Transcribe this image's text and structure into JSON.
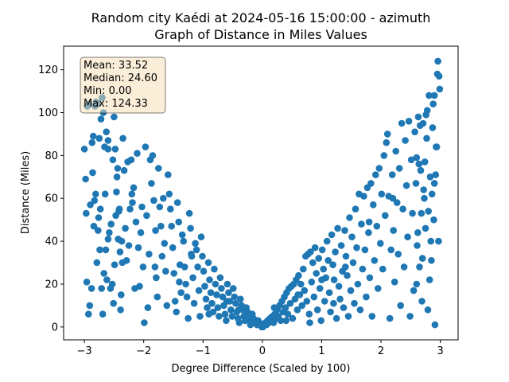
{
  "chart_data": {
    "type": "scatter",
    "title_line1": "Random city Kaédi at 2024-05-16 15:00:00  - azimuth",
    "title_line2": "Graph of Distance in Miles Values",
    "xlabel": "Degree Difference (Scaled by 100)",
    "ylabel": "Distance (Miles)",
    "xlim": [
      -3.35,
      3.3
    ],
    "ylim": [
      -6,
      131
    ],
    "xticks": [
      -3,
      -2,
      -1,
      0,
      1,
      2,
      3
    ],
    "xtick_labels": [
      "−3",
      "−2",
      "−1",
      "0",
      "1",
      "2",
      "3"
    ],
    "yticks": [
      0,
      20,
      40,
      60,
      80,
      100,
      120
    ],
    "ytick_labels": [
      "0",
      "20",
      "40",
      "60",
      "80",
      "100",
      "120"
    ],
    "grid": false,
    "marker_color": "#1f77b4",
    "stats": {
      "mean": "Mean: 33.52",
      "median": "Median: 24.60",
      "min": "Min: 0.00",
      "max": "Max: 124.33"
    },
    "stats_box_bg": "#f5deb3",
    "points": [
      [
        -3.0,
        83
      ],
      [
        -2.98,
        69
      ],
      [
        -2.95,
        103
      ],
      [
        -2.92,
        104
      ],
      [
        -2.9,
        57
      ],
      [
        -2.97,
        53
      ],
      [
        -2.93,
        6
      ],
      [
        -2.96,
        21
      ],
      [
        -2.87,
        86
      ],
      [
        -2.85,
        89
      ],
      [
        -2.82,
        103
      ],
      [
        -2.8,
        105
      ],
      [
        -2.78,
        104
      ],
      [
        -2.75,
        88
      ],
      [
        -2.72,
        97
      ],
      [
        -2.7,
        107
      ],
      [
        -2.68,
        100
      ],
      [
        -2.66,
        84
      ],
      [
        -2.63,
        91
      ],
      [
        -2.6,
        87
      ],
      [
        -2.86,
        72
      ],
      [
        -2.84,
        47
      ],
      [
        -2.81,
        62
      ],
      [
        -2.79,
        30
      ],
      [
        -2.77,
        45
      ],
      [
        -2.74,
        36
      ],
      [
        -2.71,
        18
      ],
      [
        -2.69,
        6
      ],
      [
        -2.67,
        25
      ],
      [
        -2.64,
        36
      ],
      [
        -2.88,
        18
      ],
      [
        -2.91,
        10
      ],
      [
        -2.83,
        59
      ],
      [
        -2.76,
        51
      ],
      [
        -2.73,
        55
      ],
      [
        -2.65,
        62
      ],
      [
        -2.62,
        22
      ],
      [
        -2.6,
        41
      ],
      [
        -2.58,
        44
      ],
      [
        -2.56,
        18
      ],
      [
        -2.55,
        48
      ],
      [
        -2.52,
        78
      ],
      [
        -2.5,
        98
      ],
      [
        -2.48,
        83
      ],
      [
        -2.46,
        63
      ],
      [
        -2.44,
        74
      ],
      [
        -2.42,
        54
      ],
      [
        -2.4,
        35
      ],
      [
        -2.38,
        15
      ],
      [
        -2.36,
        30
      ],
      [
        -2.53,
        20
      ],
      [
        -2.51,
        11
      ],
      [
        -2.49,
        29
      ],
      [
        -2.47,
        52
      ],
      [
        -2.45,
        70
      ],
      [
        -2.43,
        41
      ],
      [
        -2.41,
        55
      ],
      [
        -2.39,
        8
      ],
      [
        -2.37,
        40
      ],
      [
        -2.35,
        88
      ],
      [
        -2.33,
        73
      ],
      [
        -2.31,
        46
      ],
      [
        -2.29,
        31
      ],
      [
        -2.27,
        77
      ],
      [
        -2.25,
        38
      ],
      [
        -2.23,
        55
      ],
      [
        -2.21,
        78
      ],
      [
        -2.19,
        58
      ],
      [
        -2.17,
        65
      ],
      [
        -2.15,
        18
      ],
      [
        -2.13,
        49
      ],
      [
        -2.11,
        81
      ],
      [
        -2.09,
        37
      ],
      [
        -2.07,
        19
      ],
      [
        -2.05,
        44
      ],
      [
        -2.03,
        56
      ],
      [
        -2.01,
        28
      ],
      [
        -1.99,
        2
      ],
      [
        -1.97,
        84
      ],
      [
        -1.95,
        52
      ],
      [
        -1.93,
        9
      ],
      [
        -1.91,
        34
      ],
      [
        -1.89,
        78
      ],
      [
        -1.87,
        67
      ],
      [
        -1.85,
        80
      ],
      [
        -1.83,
        59
      ],
      [
        -1.81,
        28
      ],
      [
        -1.79,
        23
      ],
      [
        -1.77,
        14
      ],
      [
        -1.75,
        74
      ],
      [
        -1.73,
        56
      ],
      [
        -1.71,
        47
      ],
      [
        -1.69,
        33
      ],
      [
        -1.67,
        60
      ],
      [
        -1.65,
        39
      ],
      [
        -1.63,
        26
      ],
      [
        -1.61,
        10
      ],
      [
        -1.59,
        71
      ],
      [
        -1.57,
        62
      ],
      [
        -1.55,
        55
      ],
      [
        -1.53,
        47
      ],
      [
        -1.51,
        37
      ],
      [
        -1.49,
        25
      ],
      [
        -1.47,
        12
      ],
      [
        -1.45,
        7
      ],
      [
        -1.43,
        58
      ],
      [
        -1.41,
        49
      ],
      [
        -1.39,
        29
      ],
      [
        -1.37,
        16
      ],
      [
        -1.35,
        43
      ],
      [
        -1.33,
        40
      ],
      [
        -1.31,
        28
      ],
      [
        -1.29,
        20
      ],
      [
        -1.27,
        14
      ],
      [
        -1.25,
        4
      ],
      [
        -1.23,
        53
      ],
      [
        -1.21,
        46
      ],
      [
        -1.19,
        33
      ],
      [
        -1.17,
        23
      ],
      [
        -1.15,
        11
      ],
      [
        -1.13,
        39
      ],
      [
        -1.11,
        36
      ],
      [
        -1.09,
        28
      ],
      [
        -1.07,
        17
      ],
      [
        -1.05,
        5
      ],
      [
        -1.03,
        42
      ],
      [
        -1.01,
        33
      ],
      [
        -0.99,
        26
      ],
      [
        -0.97,
        19
      ],
      [
        -0.95,
        13
      ],
      [
        -0.93,
        9
      ],
      [
        -0.91,
        30
      ],
      [
        -0.89,
        22
      ],
      [
        -0.87,
        16
      ],
      [
        -0.85,
        11
      ],
      [
        -0.83,
        7
      ],
      [
        -0.81,
        27
      ],
      [
        -0.79,
        20
      ],
      [
        -0.77,
        15
      ],
      [
        -0.75,
        9
      ],
      [
        -0.73,
        5
      ],
      [
        -0.71,
        23
      ],
      [
        -0.69,
        18
      ],
      [
        -0.67,
        14
      ],
      [
        -0.65,
        10
      ],
      [
        -0.63,
        6
      ],
      [
        -0.61,
        3
      ],
      [
        -0.59,
        20
      ],
      [
        -0.57,
        16
      ],
      [
        -0.55,
        12
      ],
      [
        -0.53,
        8
      ],
      [
        -0.51,
        5
      ],
      [
        -0.49,
        18
      ],
      [
        -0.47,
        14
      ],
      [
        -0.45,
        11
      ],
      [
        -0.43,
        7
      ],
      [
        -0.41,
        4
      ],
      [
        -0.39,
        2
      ],
      [
        -0.37,
        13
      ],
      [
        -0.35,
        10
      ],
      [
        -0.33,
        8
      ],
      [
        -0.31,
        5
      ],
      [
        -0.29,
        3
      ],
      [
        -0.27,
        9
      ],
      [
        -0.25,
        7
      ],
      [
        -0.23,
        5
      ],
      [
        -0.21,
        4
      ],
      [
        -0.19,
        2
      ],
      [
        -0.17,
        6
      ],
      [
        -0.15,
        4
      ],
      [
        -0.13,
        3
      ],
      [
        -0.11,
        2
      ],
      [
        -0.09,
        1
      ],
      [
        -0.07,
        3
      ],
      [
        -0.05,
        2
      ],
      [
        -0.03,
        1
      ],
      [
        -0.01,
        0
      ],
      [
        0.01,
        0
      ],
      [
        0.03,
        1
      ],
      [
        0.05,
        2
      ],
      [
        0.07,
        1
      ],
      [
        0.09,
        3
      ],
      [
        0.11,
        2
      ],
      [
        0.13,
        4
      ],
      [
        0.15,
        3
      ],
      [
        0.17,
        5
      ],
      [
        0.19,
        2
      ],
      [
        0.21,
        6
      ],
      [
        0.23,
        4
      ],
      [
        0.25,
        8
      ],
      [
        0.27,
        5
      ],
      [
        0.29,
        10
      ],
      [
        0.31,
        3
      ],
      [
        0.33,
        12
      ],
      [
        0.35,
        7
      ],
      [
        0.37,
        14
      ],
      [
        0.39,
        9
      ],
      [
        0.41,
        16
      ],
      [
        0.43,
        6
      ],
      [
        0.45,
        18
      ],
      [
        0.47,
        11
      ],
      [
        0.49,
        19
      ],
      [
        0.51,
        4
      ],
      [
        0.53,
        20
      ],
      [
        0.55,
        13
      ],
      [
        0.57,
        22
      ],
      [
        0.59,
        8
      ],
      [
        0.61,
        24
      ],
      [
        0.63,
        15
      ],
      [
        0.65,
        20
      ],
      [
        0.67,
        10
      ],
      [
        0.69,
        27
      ],
      [
        0.71,
        17
      ],
      [
        0.73,
        33
      ],
      [
        0.75,
        12
      ],
      [
        0.77,
        34
      ],
      [
        0.79,
        6
      ],
      [
        0.81,
        35
      ],
      [
        0.83,
        21
      ],
      [
        0.85,
        30
      ],
      [
        0.87,
        14
      ],
      [
        0.89,
        37
      ],
      [
        0.91,
        25
      ],
      [
        0.93,
        8
      ],
      [
        0.95,
        32
      ],
      [
        0.97,
        18
      ],
      [
        0.99,
        3
      ],
      [
        1.01,
        36
      ],
      [
        1.03,
        27
      ],
      [
        1.05,
        12
      ],
      [
        1.07,
        23
      ],
      [
        1.09,
        40
      ],
      [
        1.11,
        31
      ],
      [
        1.13,
        16
      ],
      [
        1.15,
        7
      ],
      [
        1.17,
        43
      ],
      [
        1.19,
        29
      ],
      [
        1.21,
        22
      ],
      [
        1.23,
        35
      ],
      [
        1.25,
        4
      ],
      [
        1.27,
        46
      ],
      [
        1.29,
        19
      ],
      [
        1.31,
        13
      ],
      [
        1.33,
        38
      ],
      [
        1.35,
        26
      ],
      [
        1.37,
        9
      ],
      [
        1.39,
        45
      ],
      [
        1.41,
        33
      ],
      [
        1.43,
        24
      ],
      [
        1.45,
        5
      ],
      [
        1.47,
        51
      ],
      [
        1.49,
        17
      ],
      [
        1.51,
        42
      ],
      [
        1.53,
        30
      ],
      [
        1.55,
        11
      ],
      [
        1.57,
        55
      ],
      [
        1.59,
        37
      ],
      [
        1.61,
        20
      ],
      [
        1.63,
        62
      ],
      [
        1.65,
        8
      ],
      [
        1.67,
        48
      ],
      [
        1.69,
        27
      ],
      [
        1.71,
        61
      ],
      [
        1.73,
        36
      ],
      [
        1.75,
        14
      ],
      [
        1.77,
        65
      ],
      [
        1.79,
        44
      ],
      [
        1.81,
        23
      ],
      [
        1.83,
        67
      ],
      [
        1.85,
        5
      ],
      [
        1.87,
        57
      ],
      [
        1.89,
        31
      ],
      [
        1.91,
        71
      ],
      [
        1.93,
        47
      ],
      [
        1.95,
        18
      ],
      [
        1.97,
        74
      ],
      [
        1.99,
        39
      ],
      [
        2.01,
        62
      ],
      [
        2.03,
        27
      ],
      [
        2.05,
        80
      ],
      [
        2.07,
        52
      ],
      [
        2.09,
        86
      ],
      [
        2.11,
        90
      ],
      [
        2.13,
        61
      ],
      [
        2.15,
        4
      ],
      [
        2.17,
        36
      ],
      [
        2.19,
        71
      ],
      [
        2.21,
        45
      ],
      [
        2.23,
        21
      ],
      [
        2.25,
        82
      ],
      [
        2.27,
        58
      ],
      [
        2.29,
        34
      ],
      [
        2.31,
        74
      ],
      [
        2.33,
        10
      ],
      [
        2.35,
        95
      ],
      [
        2.37,
        55
      ],
      [
        2.39,
        28
      ],
      [
        2.41,
        87
      ],
      [
        2.43,
        66
      ],
      [
        2.45,
        42
      ],
      [
        2.47,
        96
      ],
      [
        2.49,
        5
      ],
      [
        2.51,
        78
      ],
      [
        2.53,
        53
      ],
      [
        2.55,
        17
      ],
      [
        2.57,
        91
      ],
      [
        2.59,
        67
      ],
      [
        2.61,
        38
      ],
      [
        2.63,
        98
      ],
      [
        2.65,
        28
      ],
      [
        2.67,
        73
      ],
      [
        2.69,
        12
      ],
      [
        2.71,
        95
      ],
      [
        2.73,
        60
      ],
      [
        2.75,
        46
      ],
      [
        2.77,
        88
      ],
      [
        2.79,
        8
      ],
      [
        2.81,
        108
      ],
      [
        2.83,
        70
      ],
      [
        2.85,
        31
      ],
      [
        2.87,
        93
      ],
      [
        2.89,
        50
      ],
      [
        2.91,
        1
      ],
      [
        2.93,
        84
      ],
      [
        2.95,
        118
      ],
      [
        2.97,
        40
      ],
      [
        2.99,
        111
      ],
      [
        2.96,
        124
      ],
      [
        2.98,
        117
      ],
      [
        2.94,
        84
      ],
      [
        2.92,
        71
      ],
      [
        2.9,
        108
      ],
      [
        2.88,
        104
      ],
      [
        2.86,
        62
      ],
      [
        2.84,
        40
      ],
      [
        2.82,
        22
      ],
      [
        2.8,
        54
      ],
      [
        2.78,
        101
      ],
      [
        2.76,
        99
      ],
      [
        2.74,
        77
      ],
      [
        2.72,
        64
      ],
      [
        2.7,
        32
      ],
      [
        2.68,
        53
      ],
      [
        2.66,
        94
      ],
      [
        2.64,
        76
      ],
      [
        2.62,
        44
      ],
      [
        2.6,
        20
      ],
      [
        -0.9,
        6
      ],
      [
        -0.6,
        12
      ],
      [
        -0.4,
        8
      ],
      [
        -0.2,
        1
      ],
      [
        0.2,
        9
      ],
      [
        0.4,
        3
      ],
      [
        0.6,
        15
      ],
      [
        0.8,
        2
      ],
      [
        1.0,
        22
      ],
      [
        1.2,
        11
      ],
      [
        -1.4,
        21
      ],
      [
        -1.2,
        34
      ],
      [
        -1.8,
        45
      ],
      [
        -2.2,
        62
      ],
      [
        -2.6,
        83
      ],
      [
        1.4,
        28
      ],
      [
        1.8,
        49
      ],
      [
        2.2,
        60
      ],
      [
        2.6,
        79
      ],
      [
        2.9,
        67
      ]
    ]
  }
}
